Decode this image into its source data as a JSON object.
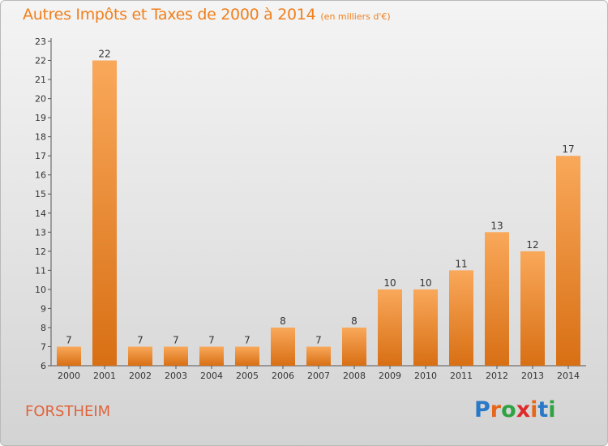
{
  "title": "Autres Impôts et Taxes de 2000 à 2014",
  "unit_label": "(en milliers d'€)",
  "commune": "FORSTHEIM",
  "logo": {
    "letters": [
      "P",
      "r",
      "o",
      "x",
      "i",
      "t",
      "i"
    ],
    "colors": [
      "#2a78c8",
      "#e6661c",
      "#2fa243",
      "#e02a2a",
      "#e6661c",
      "#2a78c8",
      "#2fa243"
    ]
  },
  "colors": {
    "bar_light": "#f9a85a",
    "bar_dark": "#d86f14",
    "title": "#f07f1c"
  },
  "chart_data": {
    "type": "bar",
    "title": "Autres Impôts et Taxes de 2000 à 2014",
    "subtitle": "(en milliers d'€)",
    "categories": [
      "2000",
      "2001",
      "2002",
      "2003",
      "2004",
      "2005",
      "2006",
      "2007",
      "2008",
      "2009",
      "2010",
      "2011",
      "2012",
      "2013",
      "2014"
    ],
    "values": [
      7,
      22,
      7,
      7,
      7,
      7,
      8,
      7,
      8,
      10,
      10,
      11,
      13,
      12,
      17
    ],
    "ylim": [
      6,
      23
    ],
    "yticks": [
      6,
      7,
      8,
      9,
      10,
      11,
      12,
      13,
      14,
      15,
      16,
      17,
      18,
      19,
      20,
      21,
      22,
      23
    ],
    "grid": false,
    "xlabel": "",
    "ylabel": ""
  }
}
